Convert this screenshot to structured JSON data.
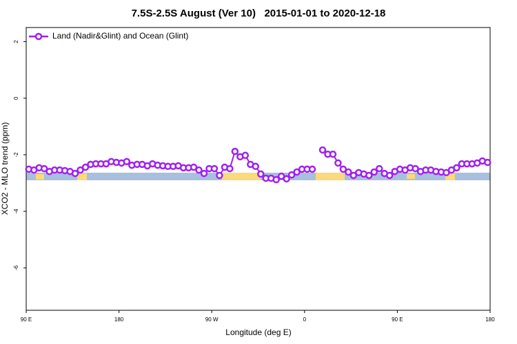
{
  "chart_data": {
    "type": "line",
    "title": "7.5S-2.5S August (Ver 10)   2015-01-01 to 2020-12-18",
    "xlabel": "Longitude (deg E)",
    "ylabel": "XCO2 - MLO trend (ppm)",
    "xlim": [
      90,
      540
    ],
    "xticks": [
      {
        "value": 90,
        "label": "90 E"
      },
      {
        "value": 180,
        "label": "180"
      },
      {
        "value": 270,
        "label": "90 W"
      },
      {
        "value": 360,
        "label": "0"
      },
      {
        "value": 450,
        "label": "90 E"
      },
      {
        "value": 540,
        "label": "180"
      }
    ],
    "ylim": [
      -7.5,
      2.5
    ],
    "yticks": [
      2,
      0,
      -2,
      -4,
      -6
    ],
    "legend": "top-left",
    "x": [
      92.5,
      97.5,
      102.5,
      107.5,
      112.5,
      117.5,
      122.5,
      127.5,
      132.5,
      137.5,
      142.5,
      147.5,
      152.5,
      157.5,
      162.5,
      167.5,
      172.5,
      177.5,
      182.5,
      187.5,
      192.5,
      197.5,
      202.5,
      207.5,
      212.5,
      217.5,
      222.5,
      227.5,
      232.5,
      237.5,
      242.5,
      247.5,
      252.5,
      257.5,
      262.5,
      267.5,
      272.5,
      277.5,
      282.5,
      287.5,
      292.5,
      297.5,
      302.5,
      307.5,
      312.5,
      317.5,
      322.5,
      327.5,
      332.5,
      337.5,
      342.5,
      347.5,
      352.5,
      357.5,
      362.5,
      367.5,
      372.5,
      377.5,
      382.5,
      387.5,
      392.5,
      397.5,
      402.5,
      407.5,
      412.5,
      417.5,
      422.5,
      427.5,
      432.5,
      437.5,
      442.5,
      447.5,
      452.5,
      457.5,
      462.5,
      467.5,
      472.5,
      477.5,
      482.5,
      487.5,
      492.5,
      497.5,
      502.5,
      507.5,
      512.5,
      517.5,
      522.5,
      527.5,
      532.5,
      537.5
    ],
    "series": [
      {
        "name": "Land (Nadir&Glint) and Ocean (Glint)",
        "color": "#a020f0",
        "values": [
          -2.51,
          -2.54,
          -2.46,
          -2.49,
          -2.59,
          -2.54,
          -2.54,
          -2.56,
          -2.59,
          -2.66,
          -2.54,
          -2.44,
          -2.34,
          -2.32,
          -2.32,
          -2.32,
          -2.24,
          -2.27,
          -2.29,
          -2.24,
          -2.37,
          -2.34,
          -2.34,
          -2.39,
          -2.32,
          -2.37,
          -2.39,
          -2.41,
          -2.41,
          -2.39,
          -2.46,
          -2.46,
          -2.44,
          -2.54,
          -2.66,
          -2.49,
          -2.49,
          -2.73,
          -2.44,
          -2.49,
          -1.88,
          -2.07,
          -2.02,
          -2.34,
          -2.41,
          -2.68,
          -2.83,
          -2.83,
          -2.88,
          -2.76,
          -2.85,
          -2.71,
          -2.61,
          -2.51,
          -2.51,
          -2.51,
          null,
          -1.83,
          -1.98,
          -1.98,
          -2.29,
          -2.51,
          -2.61,
          -2.73,
          -2.63,
          -2.68,
          -2.73,
          -2.61,
          -2.49,
          -2.66,
          -2.73,
          -2.59,
          -2.51,
          -2.54,
          -2.46,
          -2.49,
          -2.59,
          -2.54,
          -2.54,
          -2.59,
          -2.61,
          -2.63,
          -2.54,
          -2.46,
          -2.32,
          -2.32,
          -2.32,
          -2.29,
          -2.22,
          -2.27
        ]
      }
    ]
  }
}
